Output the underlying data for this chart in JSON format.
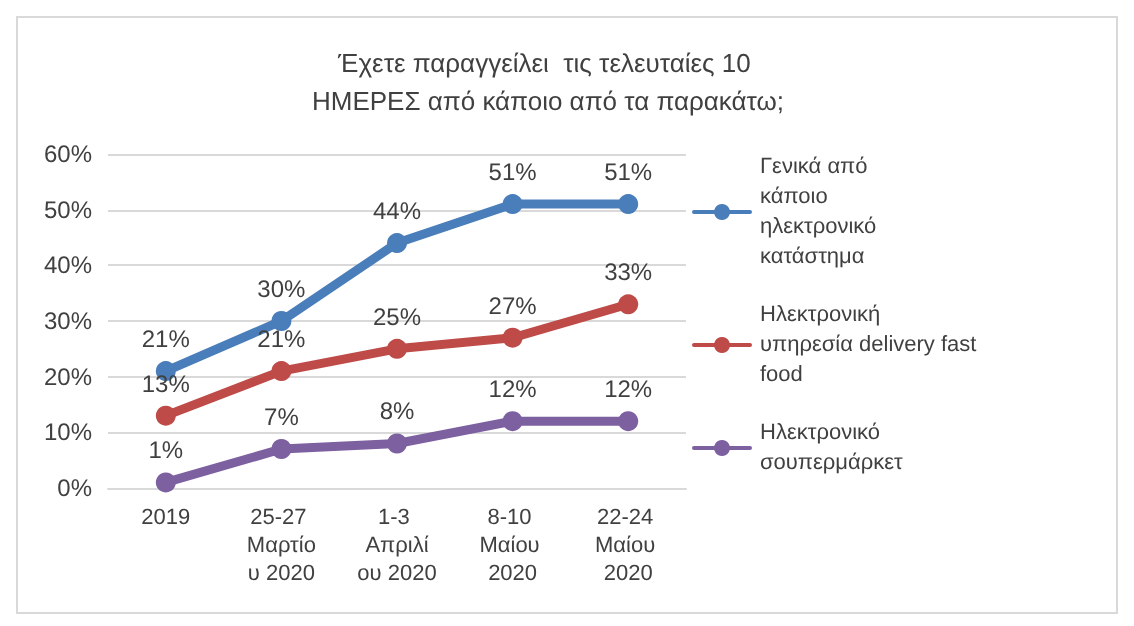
{
  "chart_data": {
    "type": "line",
    "title": "Έχετε παραγγείλει  τις τελευταίες 10 ΗΜΕΡΕΣ από κάποιο από τα παρακάτω;",
    "categories": [
      "2019",
      "25-27 Μαρτίου 2020",
      "1-3 Απριλίου 2020",
      "8-10 Μαίου 2020",
      "22-24 Μαίου 2020"
    ],
    "series": [
      {
        "name": "Γενικά από κάποιο ηλεκτρονικό κατάστημα",
        "color": "#4a7ebb",
        "values": [
          21,
          30,
          44,
          51,
          51
        ],
        "value_labels": [
          "21%",
          "30%",
          "44%",
          "51%",
          "51%"
        ]
      },
      {
        "name": "Ηλεκτρονική υπηρεσία delivery fast food",
        "color": "#be4b48",
        "values": [
          13,
          21,
          25,
          27,
          33
        ],
        "value_labels": [
          "13%",
          "21%",
          "25%",
          "27%",
          "33%"
        ]
      },
      {
        "name": "Ηλεκτρονικό σουπερμάρκετ",
        "color": "#7d60a0",
        "values": [
          1,
          7,
          8,
          12,
          12
        ],
        "value_labels": [
          "1%",
          "7%",
          "8%",
          "12%",
          "12%"
        ]
      }
    ],
    "ylim": [
      0,
      60
    ],
    "yticks": [
      {
        "value": 0,
        "label": "0%"
      },
      {
        "value": 10,
        "label": "10%"
      },
      {
        "value": 20,
        "label": "20%"
      },
      {
        "value": 30,
        "label": "30%"
      },
      {
        "value": 40,
        "label": "40%"
      },
      {
        "value": 50,
        "label": "50%"
      },
      {
        "value": 60,
        "label": "60%"
      }
    ],
    "grid": "y",
    "legend": "right",
    "marker": "circle",
    "line_style": "solid"
  }
}
